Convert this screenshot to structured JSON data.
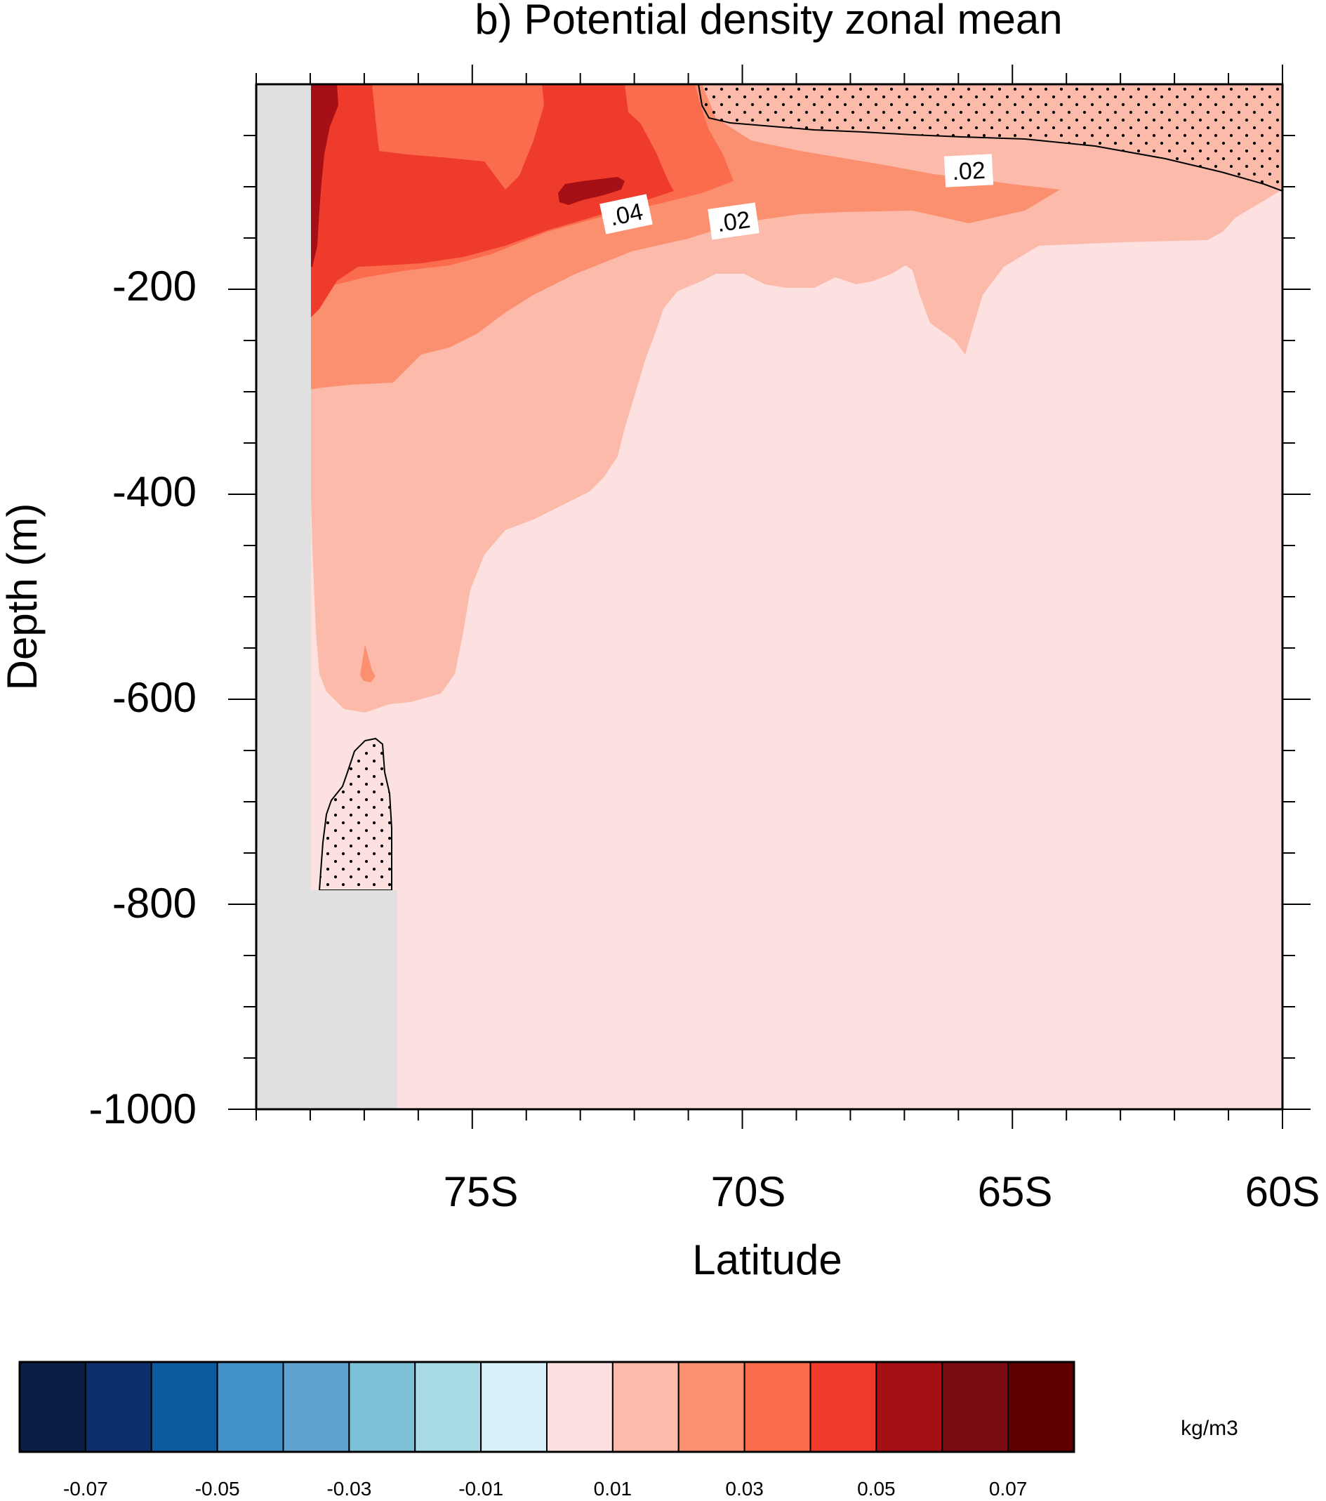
{
  "chart_data": {
    "type": "heatmap",
    "title": "b) Potential density zonal mean",
    "xlabel": "Latitude",
    "ylabel": "Depth (m)",
    "x_ticks": [
      "75S",
      "70S",
      "65S",
      "60S"
    ],
    "y_ticks": [
      "-200",
      "-400",
      "-600",
      "-800",
      "-1000"
    ],
    "xlim": [
      "79S",
      "60S"
    ],
    "ylim": [
      -1000,
      0
    ],
    "contour_labels": [
      ".04",
      ".02",
      ".02"
    ],
    "stippled_regions": [
      "near-surface poleward-of-60S strip (70S to 60S)",
      "slope column near 77S between -640 and -790 m"
    ],
    "colorbar": {
      "unit": "kg/m3",
      "colors": [
        "#0b1e45",
        "#0c2f6b",
        "#0c5aa0",
        "#4392c9",
        "#5ea4cf",
        "#7dc0d8",
        "#a9dbe5",
        "#d9f1f9",
        "#fde0e0",
        "#fbbaaa",
        "#fb9071",
        "#fb6c4c",
        "#ef3b2c",
        "#a50f15",
        "#7a0b10",
        "#5e0000"
      ],
      "labels": [
        "-0.07",
        "-0.05",
        "-0.03",
        "-0.01",
        "0.01",
        "0.03",
        "0.05",
        "0.07"
      ]
    },
    "land_color": "#e0e0e0",
    "levels": [
      {
        "range": "0.00 to 0.01",
        "region": "background ocean interior",
        "color": "#fde0e0"
      },
      {
        "range": "0.01 to 0.02",
        "region": "upper 250-600 m, deepest near 78S",
        "color": "#fbbaaa"
      },
      {
        "range": "0.02 to 0.03",
        "region": "upper 150-300 m, thin tongue to 64S",
        "color": "#fb9071"
      },
      {
        "range": "0.03 to 0.04",
        "region": "upper 150-250 m poleward of 71S",
        "color": "#fb6c4c"
      },
      {
        "range": "0.04 to 0.05",
        "region": "upper 200 m poleward of 73S",
        "color": "#ef3b2c"
      },
      {
        "range": "0.05 to 0.06",
        "region": "small patches near 78S and 73S",
        "color": "#a50f15"
      }
    ]
  }
}
